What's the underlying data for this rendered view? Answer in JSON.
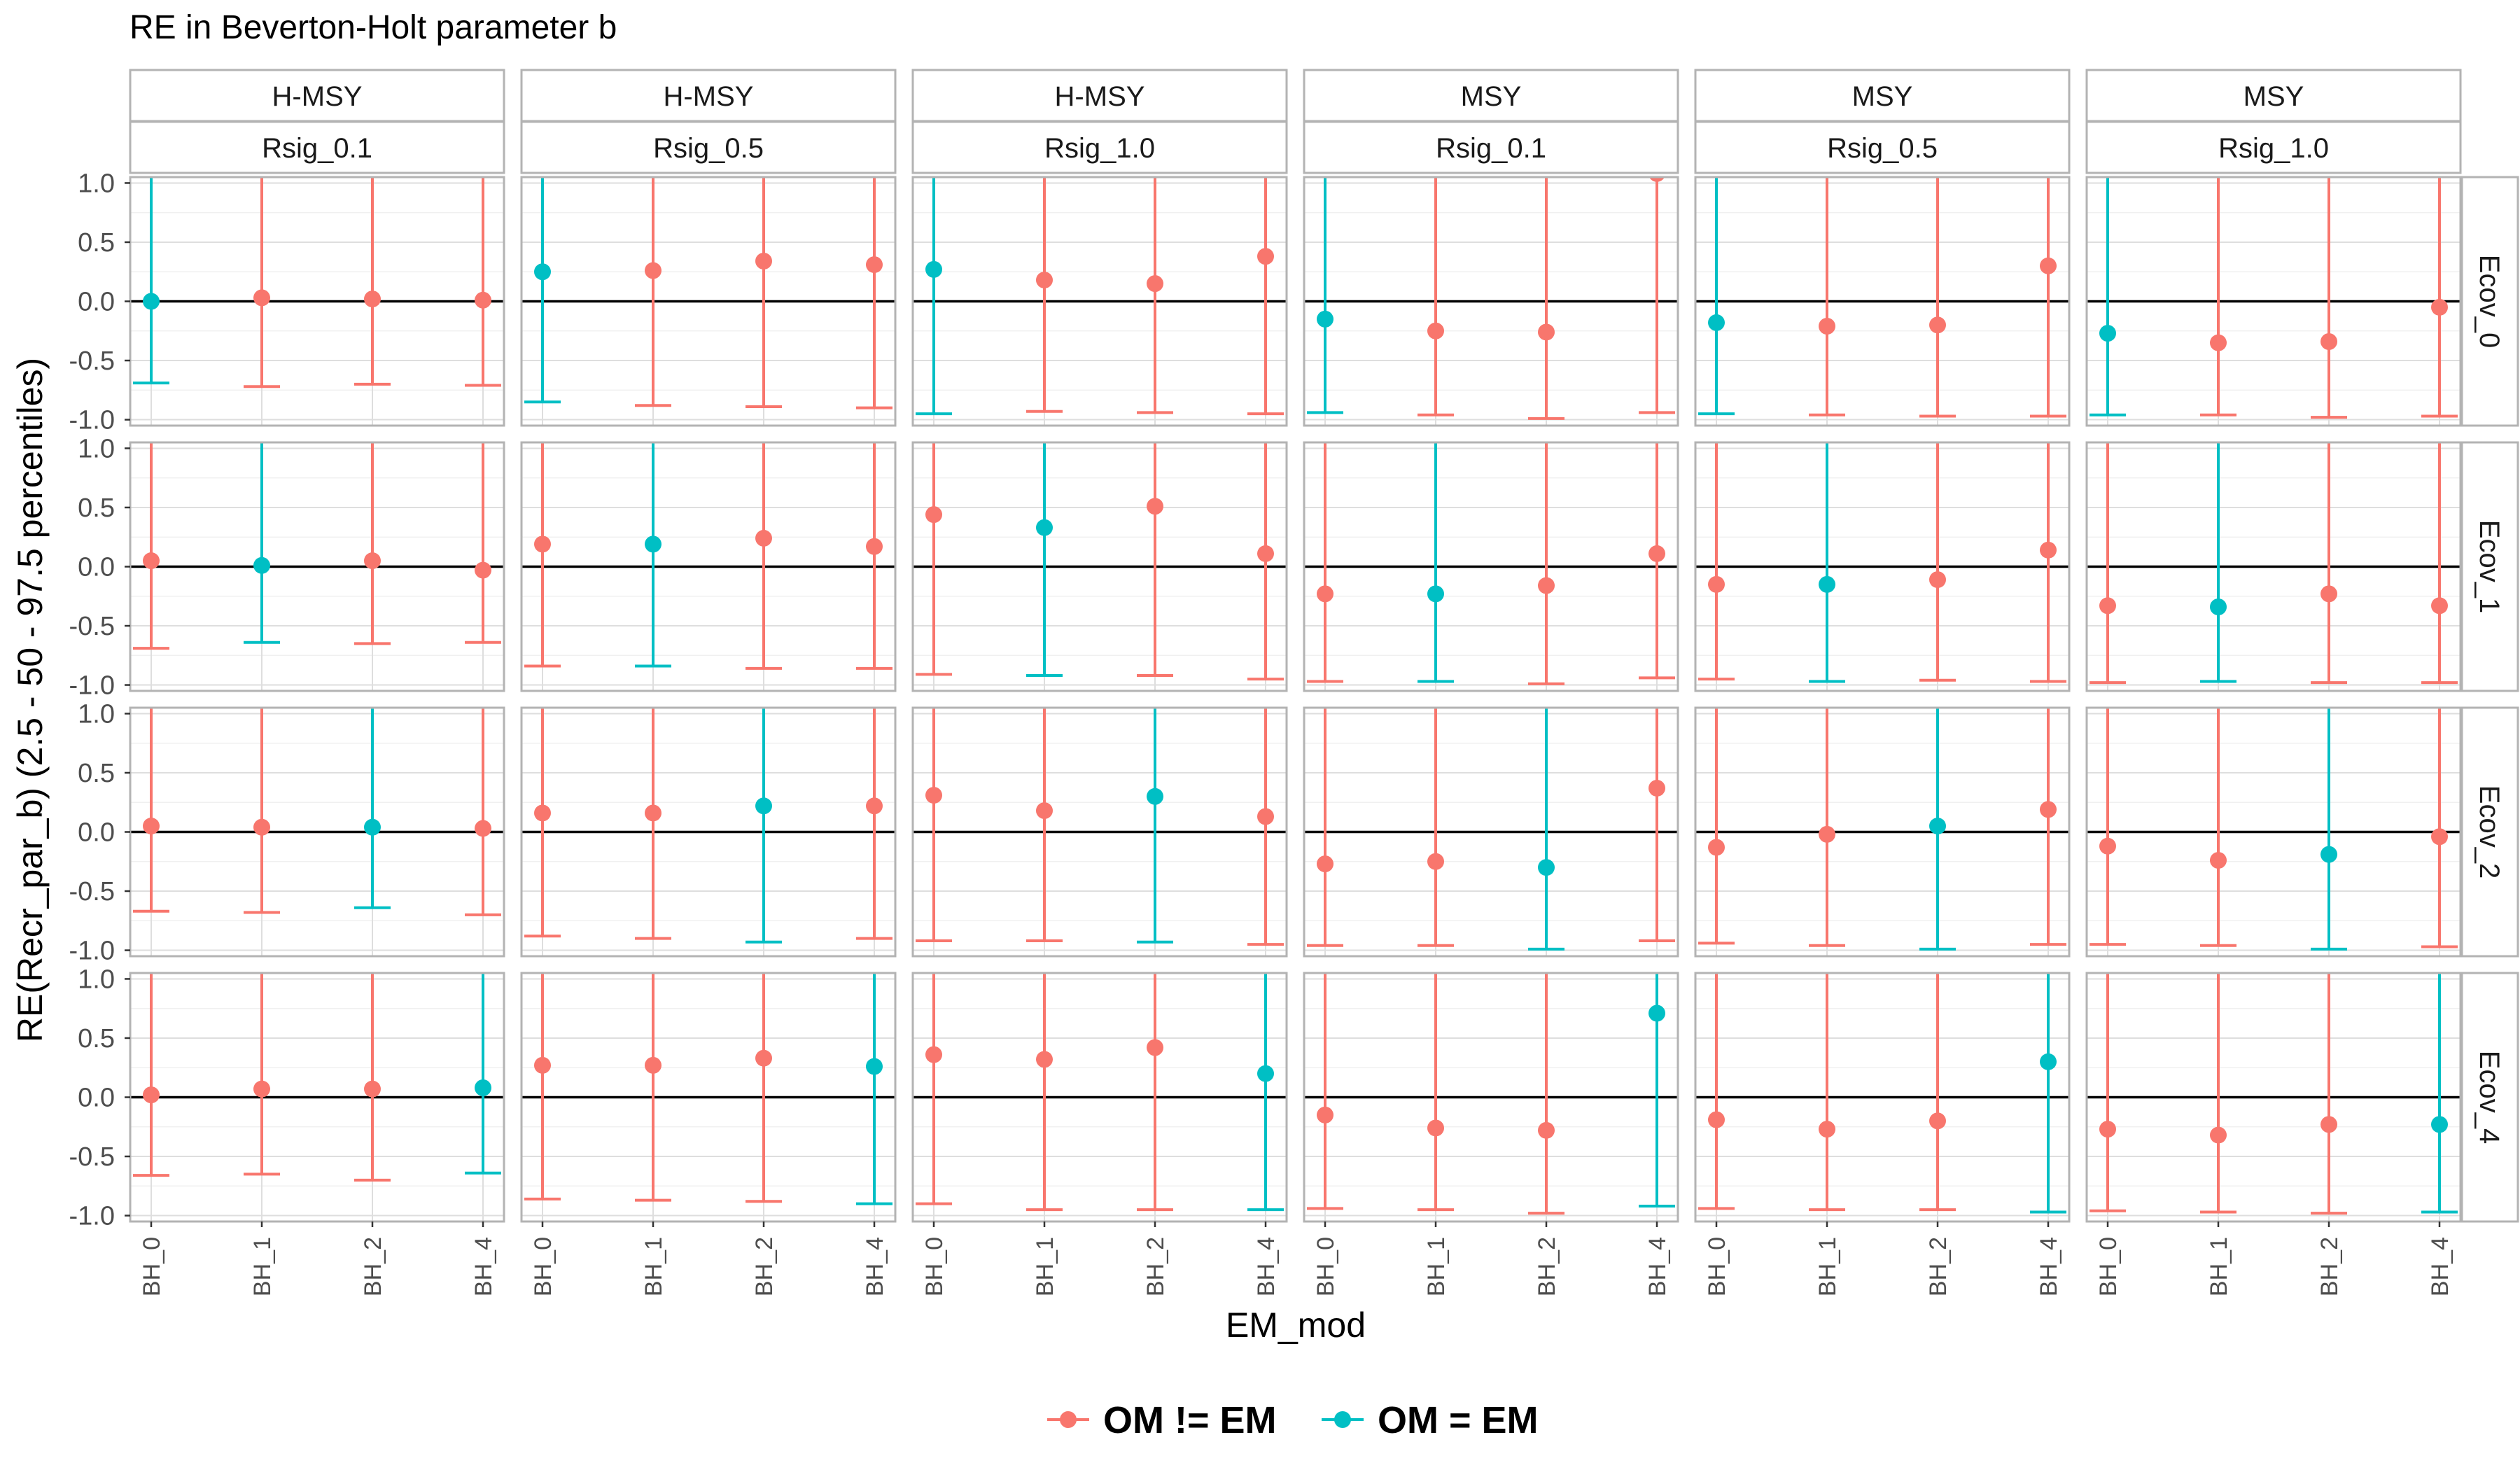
{
  "chart_data": {
    "type": "scatter",
    "title": "RE in Beverton-Holt parameter b",
    "xlabel": "EM_mod",
    "ylabel": "RE(Recr_par_b) (2.5 - 50 - 97.5 percentiles)",
    "categories": [
      "BH_0",
      "BH_1",
      "BH_2",
      "BH_4"
    ],
    "ylim": [
      -1.05,
      1.05
    ],
    "yticks": [
      1.0,
      0.5,
      0.0,
      -0.5,
      -1.0
    ],
    "ytick_labels": [
      "1.0",
      "0.5",
      "0.0",
      "-0.5",
      "-1.0"
    ],
    "grid": true,
    "reference_line_y": 0,
    "legend": {
      "position": "bottom",
      "entries": [
        {
          "label": "OM != EM",
          "color": "#F8766D"
        },
        {
          "label": "OM = EM",
          "color": "#00BFC4"
        }
      ]
    },
    "facet_columns": [
      {
        "strip_top": "H-MSY",
        "strip_bottom": "Rsig_0.1"
      },
      {
        "strip_top": "H-MSY",
        "strip_bottom": "Rsig_0.5"
      },
      {
        "strip_top": "H-MSY",
        "strip_bottom": "Rsig_1.0"
      },
      {
        "strip_top": "MSY",
        "strip_bottom": "Rsig_0.1"
      },
      {
        "strip_top": "MSY",
        "strip_bottom": "Rsig_0.5"
      },
      {
        "strip_top": "MSY",
        "strip_bottom": "Rsig_1.0"
      }
    ],
    "facet_rows": [
      "Ecov_0",
      "Ecov_1",
      "Ecov_2",
      "Ecov_4"
    ],
    "upper_percentile_note": "all 97.5 percentiles exceed the plotted range",
    "panels": [
      {
        "col": 0,
        "row": 0,
        "median": [
          0.0,
          0.03,
          0.02,
          0.01
        ],
        "lower": [
          -0.69,
          -0.72,
          -0.7,
          -0.71
        ],
        "match_index": 0
      },
      {
        "col": 1,
        "row": 0,
        "median": [
          0.25,
          0.26,
          0.34,
          0.31
        ],
        "lower": [
          -0.85,
          -0.88,
          -0.89,
          -0.9
        ],
        "match_index": 0
      },
      {
        "col": 2,
        "row": 0,
        "median": [
          0.27,
          0.18,
          0.15,
          0.38
        ],
        "lower": [
          -0.95,
          -0.93,
          -0.94,
          -0.95
        ],
        "match_index": 0
      },
      {
        "col": 3,
        "row": 0,
        "median": [
          -0.15,
          -0.25,
          -0.26,
          1.08
        ],
        "lower": [
          -0.94,
          -0.96,
          -0.99,
          -0.94
        ],
        "match_index": 0
      },
      {
        "col": 4,
        "row": 0,
        "median": [
          -0.18,
          -0.21,
          -0.2,
          0.3
        ],
        "lower": [
          -0.95,
          -0.96,
          -0.97,
          -0.97
        ],
        "match_index": 0
      },
      {
        "col": 5,
        "row": 0,
        "median": [
          -0.27,
          -0.35,
          -0.34,
          -0.05
        ],
        "lower": [
          -0.96,
          -0.96,
          -0.98,
          -0.97
        ],
        "match_index": 0
      },
      {
        "col": 0,
        "row": 1,
        "median": [
          0.05,
          0.01,
          0.05,
          -0.03
        ],
        "lower": [
          -0.69,
          -0.64,
          -0.65,
          -0.64
        ],
        "match_index": 1
      },
      {
        "col": 1,
        "row": 1,
        "median": [
          0.19,
          0.19,
          0.24,
          0.17
        ],
        "lower": [
          -0.84,
          -0.84,
          -0.86,
          -0.86
        ],
        "match_index": 1
      },
      {
        "col": 2,
        "row": 1,
        "median": [
          0.44,
          0.33,
          0.51,
          0.11
        ],
        "lower": [
          -0.91,
          -0.92,
          -0.92,
          -0.95
        ],
        "match_index": 1
      },
      {
        "col": 3,
        "row": 1,
        "median": [
          -0.23,
          -0.23,
          -0.16,
          0.11
        ],
        "lower": [
          -0.97,
          -0.97,
          -0.99,
          -0.94
        ],
        "match_index": 1
      },
      {
        "col": 4,
        "row": 1,
        "median": [
          -0.15,
          -0.15,
          -0.11,
          0.14
        ],
        "lower": [
          -0.95,
          -0.97,
          -0.96,
          -0.97
        ],
        "match_index": 1
      },
      {
        "col": 5,
        "row": 1,
        "median": [
          -0.33,
          -0.34,
          -0.23,
          -0.33
        ],
        "lower": [
          -0.98,
          -0.97,
          -0.98,
          -0.98
        ],
        "match_index": 1
      },
      {
        "col": 0,
        "row": 2,
        "median": [
          0.05,
          0.04,
          0.04,
          0.03
        ],
        "lower": [
          -0.67,
          -0.68,
          -0.64,
          -0.7
        ],
        "match_index": 2
      },
      {
        "col": 1,
        "row": 2,
        "median": [
          0.16,
          0.16,
          0.22,
          0.22
        ],
        "lower": [
          -0.88,
          -0.9,
          -0.93,
          -0.9
        ],
        "match_index": 2
      },
      {
        "col": 2,
        "row": 2,
        "median": [
          0.31,
          0.18,
          0.3,
          0.13
        ],
        "lower": [
          -0.92,
          -0.92,
          -0.93,
          -0.95
        ],
        "match_index": 2
      },
      {
        "col": 3,
        "row": 2,
        "median": [
          -0.27,
          -0.25,
          -0.3,
          0.37
        ],
        "lower": [
          -0.96,
          -0.96,
          -0.99,
          -0.92
        ],
        "match_index": 2
      },
      {
        "col": 4,
        "row": 2,
        "median": [
          -0.13,
          -0.02,
          0.05,
          0.19
        ],
        "lower": [
          -0.94,
          -0.96,
          -0.99,
          -0.95
        ],
        "match_index": 2
      },
      {
        "col": 5,
        "row": 2,
        "median": [
          -0.12,
          -0.24,
          -0.19,
          -0.04
        ],
        "lower": [
          -0.95,
          -0.96,
          -0.99,
          -0.97
        ],
        "match_index": 2
      },
      {
        "col": 0,
        "row": 3,
        "median": [
          0.02,
          0.07,
          0.07,
          0.08
        ],
        "lower": [
          -0.66,
          -0.65,
          -0.7,
          -0.64
        ],
        "match_index": 3
      },
      {
        "col": 1,
        "row": 3,
        "median": [
          0.27,
          0.27,
          0.33,
          0.26
        ],
        "lower": [
          -0.86,
          -0.87,
          -0.88,
          -0.9
        ],
        "match_index": 3
      },
      {
        "col": 2,
        "row": 3,
        "median": [
          0.36,
          0.32,
          0.42,
          0.2
        ],
        "lower": [
          -0.9,
          -0.95,
          -0.95,
          -0.95
        ],
        "match_index": 3
      },
      {
        "col": 3,
        "row": 3,
        "median": [
          -0.15,
          -0.26,
          -0.28,
          0.71
        ],
        "lower": [
          -0.94,
          -0.95,
          -0.98,
          -0.92
        ],
        "match_index": 3
      },
      {
        "col": 4,
        "row": 3,
        "median": [
          -0.19,
          -0.27,
          -0.2,
          0.3
        ],
        "lower": [
          -0.94,
          -0.95,
          -0.95,
          -0.97
        ],
        "match_index": 3
      },
      {
        "col": 5,
        "row": 3,
        "median": [
          -0.27,
          -0.32,
          -0.23,
          -0.23
        ],
        "lower": [
          -0.96,
          -0.97,
          -0.98,
          -0.97
        ],
        "match_index": 3
      }
    ]
  }
}
